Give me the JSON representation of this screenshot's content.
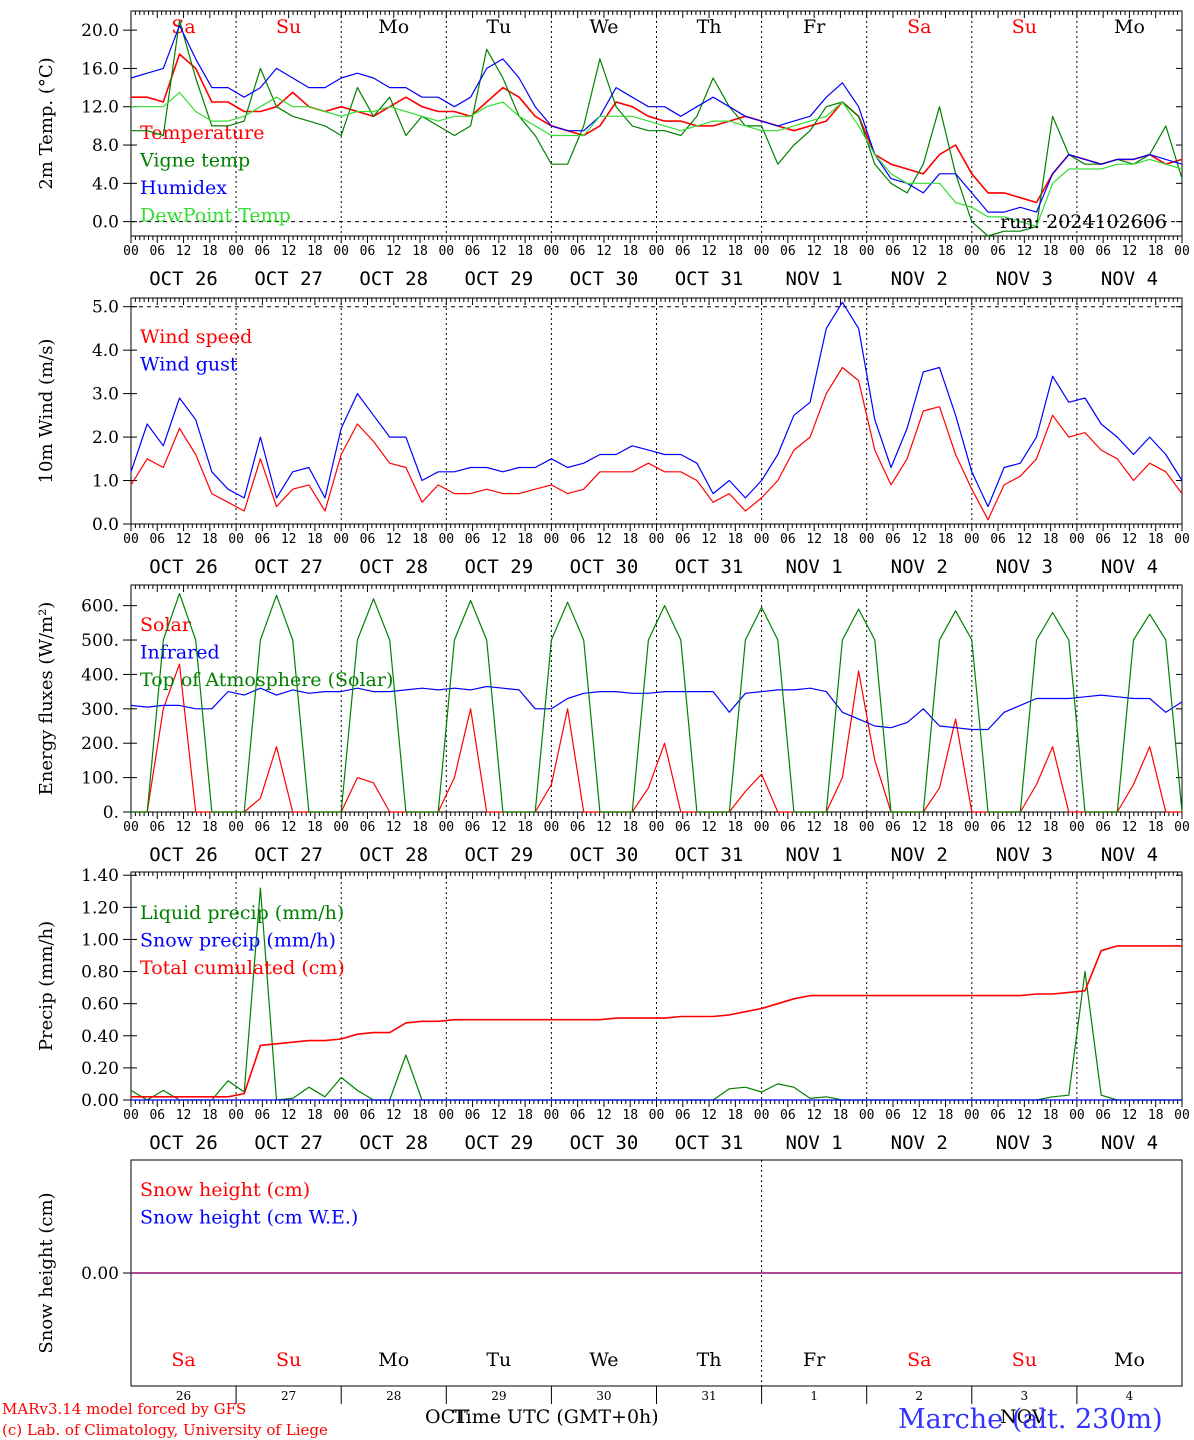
{
  "colors": {
    "red": "#ff0000",
    "green": "#008000",
    "blue": "#0000ff",
    "lightgreen": "#33dd33",
    "purple": "#800080",
    "black": "#000000",
    "title_blue": "#3333ff"
  },
  "day_names": [
    "Sa",
    "Su",
    "Mo",
    "Tu",
    "We",
    "Th",
    "Fr",
    "Sa",
    "Su",
    "Mo"
  ],
  "day_name_colors": [
    "red",
    "red",
    "black",
    "black",
    "black",
    "black",
    "black",
    "red",
    "red",
    "black"
  ],
  "date_labels": [
    "OCT 26",
    "OCT 27",
    "OCT 28",
    "OCT 29",
    "OCT 30",
    "OCT 31",
    "NOV  1",
    "NOV  2",
    "NOV  3",
    "NOV  4"
  ],
  "hour_labels": [
    "00",
    "06",
    "12",
    "18"
  ],
  "bottom_day_numbers": [
    "26",
    "27",
    "28",
    "29",
    "30",
    "31",
    "1",
    "2",
    "3",
    "4"
  ],
  "bottom_month_left": "OCT",
  "bottom_month_right": "NOV",
  "xlabel": "Time UTC (GMT+0h)",
  "credit_line1": "MARv3.14 model forced by GFS",
  "credit_line2": "(c) Lab. of Climatology, University of Liege",
  "location_title": "Marche (alt. 230m)",
  "run_label": "run: 2024102606",
  "chart_data": [
    {
      "type": "line",
      "ylabel": "2m Temp. (°C)",
      "ylim": [
        -1.5,
        22.0
      ],
      "yticks": [
        "0.0",
        "4.0",
        "8.0",
        "12.0",
        "16.0",
        "20.0"
      ],
      "ytick_values": [
        0,
        4,
        8,
        12,
        16,
        20
      ],
      "dashed_y": [
        0
      ],
      "x_hours_step": 6,
      "series": [
        {
          "name": "Temperature",
          "color": "red",
          "values": [
            13,
            13,
            12.5,
            17.5,
            16,
            12.5,
            12.5,
            11.5,
            11.5,
            12,
            13.5,
            12,
            11.5,
            12,
            11.5,
            11,
            12,
            13,
            12,
            11.5,
            11.5,
            11,
            12.5,
            14,
            13,
            11,
            10,
            9.5,
            9,
            10,
            12.5,
            12,
            11,
            10.5,
            10.5,
            10,
            10,
            10.5,
            11,
            10.5,
            10,
            9.5,
            10,
            10.5,
            12.5,
            11,
            7,
            6,
            5.5,
            5,
            7,
            8,
            5,
            3,
            3,
            2.5,
            2,
            5,
            7,
            6.5,
            6,
            6.5,
            6.5,
            7,
            6,
            6.5
          ]
        },
        {
          "name": "Vigne temp",
          "color": "green",
          "values": [
            9.5,
            9.5,
            9,
            21,
            15,
            10,
            10,
            10.5,
            16,
            12,
            11,
            10.5,
            10,
            9,
            14,
            11,
            13,
            9,
            11,
            10,
            9,
            10,
            18,
            15,
            11,
            9,
            6,
            6,
            10,
            17,
            12,
            10,
            9.5,
            9.5,
            9,
            11,
            15,
            12,
            10,
            10,
            6,
            8,
            9.5,
            12,
            12.5,
            11,
            6,
            4,
            3,
            6,
            12,
            5,
            0,
            -1.5,
            -1,
            -1,
            -0.5,
            11,
            7,
            6,
            6,
            6.5,
            6,
            7,
            10,
            4.5
          ]
        },
        {
          "name": "Humidex",
          "color": "blue",
          "values": [
            15,
            15.5,
            16,
            20.5,
            17,
            14,
            14,
            13,
            14,
            16,
            15,
            14,
            14,
            15,
            15.5,
            15,
            14,
            14,
            13,
            13,
            12,
            13,
            16,
            17,
            15,
            12,
            10,
            9.5,
            9.5,
            11,
            14,
            13,
            12,
            12,
            11,
            12,
            13,
            12,
            11,
            10.5,
            10,
            10.5,
            11,
            13,
            14.5,
            12,
            7,
            4.5,
            4,
            3,
            5,
            5,
            3,
            1,
            1,
            1.5,
            1,
            5,
            7,
            6.5,
            6,
            6.5,
            6.5,
            7,
            6.5,
            6
          ]
        },
        {
          "name": "DewPoint Temp",
          "color": "lightgreen",
          "values": [
            12,
            12,
            12,
            13.5,
            11.5,
            10.5,
            10.5,
            11,
            12,
            13,
            12,
            12,
            11.5,
            11,
            11.5,
            11.5,
            12,
            11.5,
            11,
            10.5,
            11,
            11,
            12,
            12.5,
            11,
            10,
            9,
            9,
            9,
            11,
            11,
            11,
            10.5,
            10,
            9.5,
            10,
            10.5,
            10.5,
            10,
            9.5,
            9.5,
            10,
            10.5,
            11,
            12.5,
            10,
            7,
            5,
            4,
            4,
            4,
            2,
            1.5,
            0.5,
            0.5,
            0,
            -0.5,
            4,
            5.5,
            5.5,
            5.5,
            6,
            6,
            6.5,
            6,
            5.5
          ]
        }
      ]
    },
    {
      "type": "line",
      "ylabel": "10m Wind (m/s)",
      "ylim": [
        0,
        5.2
      ],
      "yticks": [
        "0.0",
        "1.0",
        "2.0",
        "3.0",
        "4.0",
        "5.0"
      ],
      "ytick_values": [
        0,
        1,
        2,
        3,
        4,
        5
      ],
      "dashed_y": [
        5
      ],
      "x_hours_step": 6,
      "series": [
        {
          "name": "Wind speed",
          "color": "red",
          "values": [
            0.9,
            1.5,
            1.3,
            2.2,
            1.6,
            0.7,
            0.5,
            0.3,
            1.5,
            0.4,
            0.8,
            0.9,
            0.3,
            1.6,
            2.3,
            1.9,
            1.4,
            1.3,
            0.5,
            0.9,
            0.7,
            0.7,
            0.8,
            0.7,
            0.7,
            0.8,
            0.9,
            0.7,
            0.8,
            1.2,
            1.2,
            1.2,
            1.4,
            1.2,
            1.2,
            1.0,
            0.5,
            0.7,
            0.3,
            0.6,
            1.0,
            1.7,
            2.0,
            3.0,
            3.6,
            3.3,
            1.7,
            0.9,
            1.5,
            2.6,
            2.7,
            1.6,
            0.8,
            0.1,
            0.9,
            1.1,
            1.5,
            2.5,
            2.0,
            2.1,
            1.7,
            1.5,
            1.0,
            1.4,
            1.2,
            0.7
          ]
        },
        {
          "name": "Wind gust",
          "color": "blue",
          "values": [
            1.2,
            2.3,
            1.8,
            2.9,
            2.4,
            1.2,
            0.8,
            0.6,
            2.0,
            0.6,
            1.2,
            1.3,
            0.6,
            2.2,
            3.0,
            2.5,
            2.0,
            2.0,
            1.0,
            1.2,
            1.2,
            1.3,
            1.3,
            1.2,
            1.3,
            1.3,
            1.5,
            1.3,
            1.4,
            1.6,
            1.6,
            1.8,
            1.7,
            1.6,
            1.6,
            1.4,
            0.7,
            1.0,
            0.6,
            1.0,
            1.6,
            2.5,
            2.8,
            4.5,
            5.1,
            4.5,
            2.4,
            1.3,
            2.2,
            3.5,
            3.6,
            2.5,
            1.2,
            0.4,
            1.3,
            1.4,
            2.0,
            3.4,
            2.8,
            2.9,
            2.3,
            2.0,
            1.6,
            2.0,
            1.6,
            1.0
          ]
        }
      ]
    },
    {
      "type": "line",
      "ylabel": "Energy fluxes (W/m²)",
      "ylim": [
        0,
        660
      ],
      "yticks": [
        "0.",
        "100.",
        "200.",
        "300.",
        "400.",
        "500.",
        "600."
      ],
      "ytick_values": [
        0,
        100,
        200,
        300,
        400,
        500,
        600
      ],
      "dashed_y": [],
      "x_hours_step": 6,
      "series": [
        {
          "name": "Solar",
          "color": "red",
          "values": [
            0,
            0,
            300,
            430,
            0,
            0,
            0,
            0,
            40,
            190,
            0,
            0,
            0,
            0,
            100,
            85,
            0,
            0,
            0,
            0,
            100,
            300,
            0,
            0,
            0,
            0,
            80,
            300,
            0,
            0,
            0,
            0,
            70,
            200,
            0,
            0,
            0,
            0,
            60,
            110,
            0,
            0,
            0,
            0,
            100,
            410,
            150,
            0,
            0,
            0,
            70,
            270,
            0,
            0,
            0,
            0,
            80,
            190,
            0,
            0,
            0,
            0,
            80,
            190,
            0,
            0
          ]
        },
        {
          "name": "Infrared",
          "color": "blue",
          "values": [
            310,
            305,
            310,
            310,
            300,
            300,
            350,
            340,
            360,
            340,
            355,
            345,
            350,
            350,
            360,
            350,
            350,
            355,
            360,
            355,
            360,
            355,
            365,
            360,
            355,
            300,
            300,
            330,
            345,
            350,
            350,
            345,
            345,
            350,
            350,
            350,
            350,
            290,
            345,
            350,
            355,
            355,
            360,
            350,
            290,
            270,
            250,
            245,
            260,
            300,
            250,
            245,
            240,
            240,
            290,
            310,
            330,
            330,
            330,
            335,
            340,
            335,
            330,
            330,
            290,
            320
          ]
        },
        {
          "name": "Top of Atmosphere (Solar)",
          "color": "green",
          "values": [
            0,
            0,
            500,
            635,
            500,
            0,
            0,
            0,
            500,
            630,
            500,
            0,
            0,
            0,
            500,
            620,
            500,
            0,
            0,
            0,
            500,
            615,
            500,
            0,
            0,
            0,
            500,
            610,
            500,
            0,
            0,
            0,
            500,
            600,
            500,
            0,
            0,
            0,
            500,
            595,
            500,
            0,
            0,
            0,
            500,
            590,
            500,
            0,
            0,
            0,
            500,
            585,
            500,
            0,
            0,
            0,
            500,
            580,
            500,
            0,
            0,
            0,
            500,
            575,
            500,
            0
          ]
        }
      ]
    },
    {
      "type": "line",
      "ylabel": "Precip (mm/h)",
      "ylim": [
        0,
        1.42
      ],
      "yticks": [
        "0.00",
        "0.20",
        "0.40",
        "0.60",
        "0.80",
        "1.00",
        "1.20",
        "1.40"
      ],
      "ytick_values": [
        0,
        0.2,
        0.4,
        0.6,
        0.8,
        1.0,
        1.2,
        1.4
      ],
      "dashed_y": [],
      "x_hours_step": 6,
      "series": [
        {
          "name": "Liquid precip (mm/h)",
          "color": "green",
          "values": [
            0.06,
            0,
            0.06,
            0,
            0,
            0,
            0.12,
            0.05,
            1.32,
            0,
            0.01,
            0.08,
            0.02,
            0.14,
            0.06,
            0,
            0,
            0.28,
            0,
            0,
            0,
            0,
            0,
            0,
            0,
            0,
            0,
            0,
            0,
            0,
            0,
            0,
            0,
            0,
            0,
            0,
            0,
            0.07,
            0.08,
            0.05,
            0.1,
            0.08,
            0.01,
            0.02,
            0,
            0,
            0,
            0,
            0,
            0,
            0,
            0,
            0,
            0,
            0,
            0,
            0,
            0.02,
            0.03,
            0.8,
            0.03,
            0,
            0,
            0,
            0,
            0
          ]
        },
        {
          "name": "Snow precip (mm/h)",
          "color": "blue",
          "values": [
            0,
            0,
            0,
            0,
            0,
            0,
            0,
            0,
            0,
            0,
            0,
            0,
            0,
            0,
            0,
            0,
            0,
            0,
            0,
            0,
            0,
            0,
            0,
            0,
            0,
            0,
            0,
            0,
            0,
            0,
            0,
            0,
            0,
            0,
            0,
            0,
            0,
            0,
            0,
            0,
            0,
            0,
            0,
            0,
            0,
            0,
            0,
            0,
            0,
            0,
            0,
            0,
            0,
            0,
            0,
            0,
            0,
            0,
            0,
            0,
            0,
            0,
            0,
            0,
            0,
            0
          ]
        },
        {
          "name": "Total cumulated (cm)",
          "color": "red",
          "values": [
            0.02,
            0.02,
            0.02,
            0.02,
            0.02,
            0.02,
            0.02,
            0.04,
            0.34,
            0.35,
            0.36,
            0.37,
            0.37,
            0.38,
            0.41,
            0.42,
            0.42,
            0.48,
            0.49,
            0.49,
            0.5,
            0.5,
            0.5,
            0.5,
            0.5,
            0.5,
            0.5,
            0.5,
            0.5,
            0.5,
            0.51,
            0.51,
            0.51,
            0.51,
            0.52,
            0.52,
            0.52,
            0.53,
            0.55,
            0.57,
            0.6,
            0.63,
            0.65,
            0.65,
            0.65,
            0.65,
            0.65,
            0.65,
            0.65,
            0.65,
            0.65,
            0.65,
            0.65,
            0.65,
            0.65,
            0.65,
            0.66,
            0.66,
            0.67,
            0.68,
            0.93,
            0.96,
            0.96,
            0.96,
            0.96,
            0.96
          ]
        }
      ]
    },
    {
      "type": "line",
      "ylabel": "Snow height (cm)",
      "ylim": [
        -1,
        1
      ],
      "yticks": [
        "0.00"
      ],
      "ytick_values": [
        0
      ],
      "dashed_y": [],
      "x_hours_step": 6,
      "series": [
        {
          "name": "Snow height (cm)",
          "color": "red",
          "values": [
            0,
            0,
            0,
            0,
            0,
            0,
            0,
            0,
            0,
            0,
            0,
            0,
            0,
            0,
            0,
            0,
            0,
            0,
            0,
            0,
            0,
            0,
            0,
            0,
            0,
            0,
            0,
            0,
            0,
            0,
            0,
            0,
            0,
            0,
            0,
            0,
            0,
            0,
            0,
            0,
            0,
            0,
            0,
            0,
            0,
            0,
            0,
            0,
            0,
            0,
            0,
            0,
            0,
            0,
            0,
            0,
            0,
            0,
            0,
            0,
            0,
            0,
            0,
            0,
            0,
            0
          ]
        },
        {
          "name": "Snow height (cm W.E.)",
          "color": "blue",
          "values": [
            0,
            0,
            0,
            0,
            0,
            0,
            0,
            0,
            0,
            0,
            0,
            0,
            0,
            0,
            0,
            0,
            0,
            0,
            0,
            0,
            0,
            0,
            0,
            0,
            0,
            0,
            0,
            0,
            0,
            0,
            0,
            0,
            0,
            0,
            0,
            0,
            0,
            0,
            0,
            0,
            0,
            0,
            0,
            0,
            0,
            0,
            0,
            0,
            0,
            0,
            0,
            0,
            0,
            0,
            0,
            0,
            0,
            0,
            0,
            0,
            0,
            0,
            0,
            0,
            0,
            0
          ]
        }
      ]
    }
  ]
}
